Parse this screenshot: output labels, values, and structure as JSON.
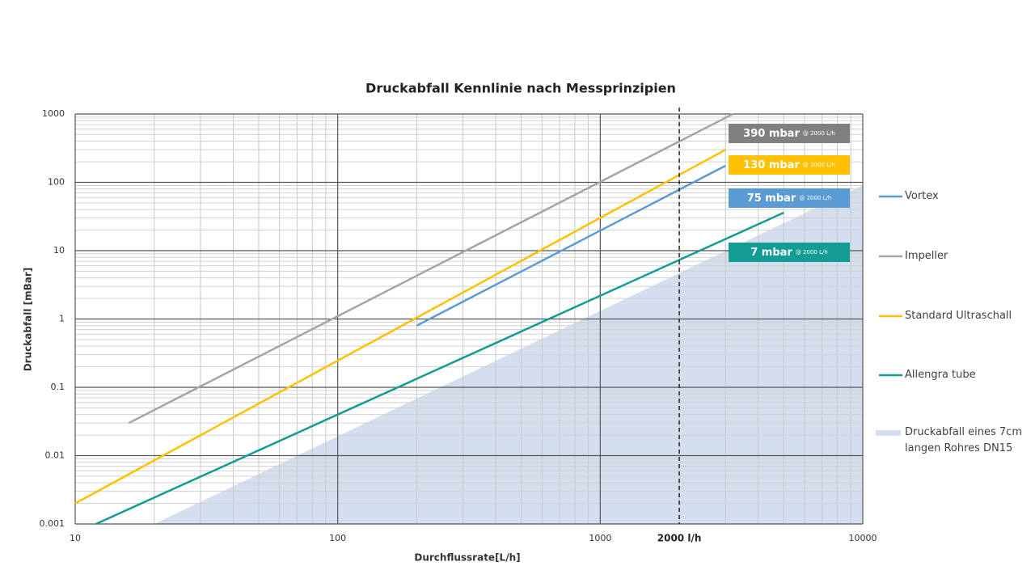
{
  "chart_data": {
    "type": "line",
    "title": "Druckabfall Kennlinie nach Messprinzipien",
    "x_label": "Durchflussrate[L/h]",
    "y_label": "Druckabfall [mBar]",
    "x_scale": "log",
    "y_scale": "log",
    "grid": true,
    "minor_grid": true,
    "legend": "right",
    "xlim": [
      10,
      10000
    ],
    "xticks": [
      10,
      100,
      1000,
      10000
    ],
    "ylim": [
      0.001,
      1000
    ],
    "yticks": [
      1000,
      100,
      10,
      1,
      0.1,
      0.01,
      0.001
    ],
    "series": [
      {
        "name": "Vortex",
        "color": "#5b9bd5",
        "x": [
          200,
          3000
        ],
        "y": [
          0.8,
          175
        ]
      },
      {
        "name": "Impeller",
        "color": "#a5a5a5",
        "x": [
          16,
          3200
        ],
        "y": [
          0.03,
          1000
        ]
      },
      {
        "name": "Standard Ultraschall",
        "color": "#ffc000",
        "x": [
          10,
          3000
        ],
        "y": [
          0.002,
          300
        ]
      },
      {
        "name": "Allengra tube",
        "color": "#139c94",
        "x": [
          12,
          5000
        ],
        "y": [
          0.001,
          36
        ]
      },
      {
        "name": "Druckabfall eines 7cm langen Rohres DN15",
        "color": "#d5deef",
        "type": "area",
        "x": [
          20,
          10000
        ],
        "y": [
          0.001,
          90
        ]
      }
    ],
    "vline": {
      "x": 2000,
      "label": "2000 l/h"
    },
    "annotations": [
      {
        "text": "390 mbar",
        "note": "@ 2000 L/h",
        "color": "#808080"
      },
      {
        "text": "130 mbar",
        "note": "@ 2000 L/h",
        "color": "#ffc000"
      },
      {
        "text": "75 mbar",
        "note": "@ 2000 L/h",
        "color": "#5b9bd5"
      },
      {
        "text": "7 mbar",
        "note": "@ 2000 L/h",
        "color": "#139c94"
      }
    ]
  }
}
